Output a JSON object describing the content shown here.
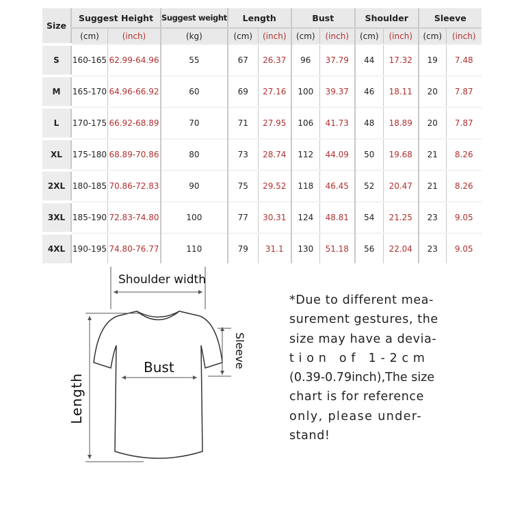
{
  "table": {
    "headers": {
      "size": "Size",
      "height": "Suggest Height",
      "weight": "Suggest weight",
      "length": "Length",
      "bust": "Bust",
      "shoulder": "Shoulder",
      "sleeve": "Sleeve"
    },
    "units": {
      "cm": "(cm)",
      "inch": "(inch)",
      "kg": "(kg)"
    },
    "rows": [
      {
        "size": "S",
        "height_cm": "160-165",
        "height_in": "62.99-64.96",
        "weight": "55",
        "length_cm": "67",
        "length_in": "26.37",
        "bust_cm": "96",
        "bust_in": "37.79",
        "shoulder_cm": "44",
        "shoulder_in": "17.32",
        "sleeve_cm": "19",
        "sleeve_in": "7.48"
      },
      {
        "size": "M",
        "height_cm": "165-170",
        "height_in": "64.96-66.92",
        "weight": "60",
        "length_cm": "69",
        "length_in": "27.16",
        "bust_cm": "100",
        "bust_in": "39.37",
        "shoulder_cm": "46",
        "shoulder_in": "18.11",
        "sleeve_cm": "20",
        "sleeve_in": "7.87"
      },
      {
        "size": "L",
        "height_cm": "170-175",
        "height_in": "66.92-68.89",
        "weight": "70",
        "length_cm": "71",
        "length_in": "27.95",
        "bust_cm": "106",
        "bust_in": "41.73",
        "shoulder_cm": "48",
        "shoulder_in": "18.89",
        "sleeve_cm": "20",
        "sleeve_in": "7.87"
      },
      {
        "size": "XL",
        "height_cm": "175-180",
        "height_in": "68.89-70.86",
        "weight": "80",
        "length_cm": "73",
        "length_in": "28.74",
        "bust_cm": "112",
        "bust_in": "44.09",
        "shoulder_cm": "50",
        "shoulder_in": "19.68",
        "sleeve_cm": "21",
        "sleeve_in": "8.26"
      },
      {
        "size": "2XL",
        "height_cm": "180-185",
        "height_in": "70.86-72.83",
        "weight": "90",
        "length_cm": "75",
        "length_in": "29.52",
        "bust_cm": "118",
        "bust_in": "46.45",
        "shoulder_cm": "52",
        "shoulder_in": "20.47",
        "sleeve_cm": "21",
        "sleeve_in": "8.26"
      },
      {
        "size": "3XL",
        "height_cm": "185-190",
        "height_in": "72.83-74.80",
        "weight": "100",
        "length_cm": "77",
        "length_in": "30.31",
        "bust_cm": "124",
        "bust_in": "48.81",
        "shoulder_cm": "54",
        "shoulder_in": "21.25",
        "sleeve_cm": "23",
        "sleeve_in": "9.05"
      },
      {
        "size": "4XL",
        "height_cm": "190-195",
        "height_in": "74.80-76.77",
        "weight": "110",
        "length_cm": "79",
        "length_in": "31.1",
        "bust_cm": "130",
        "bust_in": "51.18",
        "shoulder_cm": "56",
        "shoulder_in": "22.04",
        "sleeve_cm": "23",
        "sleeve_in": "9.05"
      }
    ]
  },
  "diagram": {
    "shoulder_width": "Shoulder width",
    "bust": "Bust",
    "sleeve": "Sleeve",
    "length": "Length"
  },
  "note": [
    "*Due to different mea-",
    "surement gestures, the",
    "size may have a devia-",
    "t i o n   o f   1 - 2 c m",
    "(0.39-0.79inch),The size",
    "chart is for reference",
    "only, please under-",
    "stand!"
  ]
}
